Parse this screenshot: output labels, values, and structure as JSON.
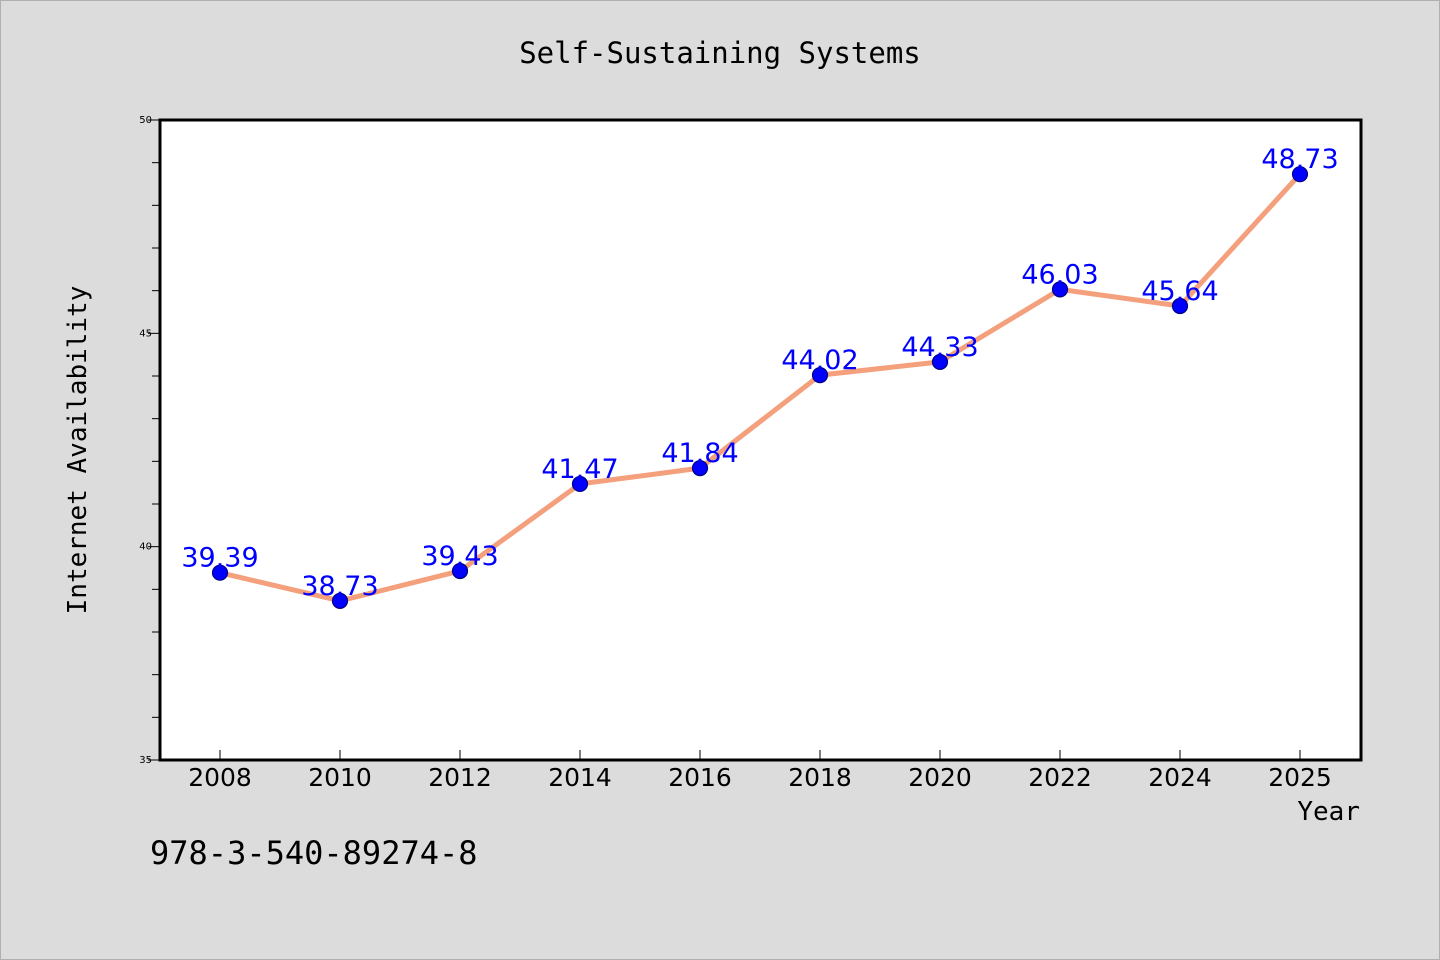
{
  "chart_data": {
    "type": "line",
    "title": "Self-Sustaining Systems",
    "xlabel": "Year",
    "ylabel": "Internet Availability",
    "categories": [
      "2008",
      "2010",
      "2012",
      "2014",
      "2016",
      "2018",
      "2020",
      "2022",
      "2024",
      "2025"
    ],
    "values": [
      39.39,
      38.73,
      39.43,
      41.47,
      41.84,
      44.02,
      44.33,
      46.03,
      45.64,
      48.73
    ],
    "labels": [
      "39.39",
      "38.73",
      "39.43",
      "41.47",
      "41.84",
      "44.02",
      "44.33",
      "46.03",
      "45.64",
      "48.73"
    ],
    "ylim": [
      35,
      50
    ],
    "yticks_major": [
      35,
      40,
      45,
      50
    ],
    "ytick_labels": [
      "35",
      "40",
      "45",
      "50"
    ],
    "grid": false,
    "legend": "none",
    "colors": {
      "line": "#f4a07c",
      "marker": "#0000ff",
      "data_label": "#0000ff",
      "background": "#dcdcdc",
      "plot_area": "#ffffff"
    }
  },
  "footer": {
    "isbn": "978-3-540-89274-8"
  }
}
